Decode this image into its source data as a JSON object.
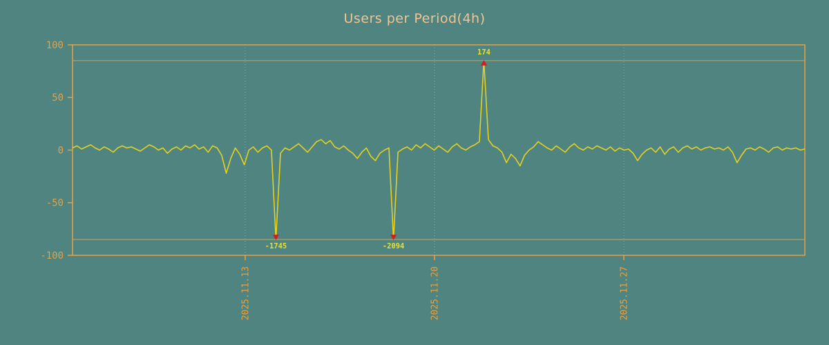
{
  "page": {
    "background": "#4f8480"
  },
  "chart_data": {
    "type": "line",
    "title": "Users per Period(4h)",
    "title_color": "#f2c48f",
    "axis_color": "#e8a040",
    "line_color": "#e6d21e",
    "marker_color": "#cc1f1f",
    "annotation_color": "#ecdf2c",
    "ylim": [
      -100,
      100
    ],
    "y_ticks": [
      100,
      50,
      0,
      -50,
      -100
    ],
    "clip_lines": [
      85,
      -85
    ],
    "grid": "dotted-vertical",
    "legend": "none",
    "x_ticks": [
      {
        "label": "2025.11.13",
        "pos": 0.2358
      },
      {
        "label": "2025.11.20",
        "pos": 0.4943
      },
      {
        "label": "2025.11.27",
        "pos": 0.7528
      }
    ],
    "annotations": [
      {
        "index": 45,
        "value": -1745,
        "label": "-1745",
        "direction": "down"
      },
      {
        "index": 71,
        "value": -2094,
        "label": "-2094",
        "direction": "down"
      },
      {
        "index": 91,
        "value": 174,
        "label": "174",
        "direction": "up"
      }
    ],
    "values": [
      2,
      4,
      1,
      3,
      5,
      2,
      0,
      3,
      1,
      -2,
      2,
      4,
      2,
      3,
      1,
      -1,
      2,
      5,
      3,
      0,
      2,
      -3,
      1,
      3,
      0,
      4,
      2,
      5,
      1,
      3,
      -2,
      4,
      2,
      -5,
      -22,
      -8,
      2,
      -4,
      -14,
      0,
      3,
      -2,
      2,
      4,
      0,
      -1745,
      -3,
      2,
      0,
      3,
      6,
      2,
      -2,
      3,
      8,
      10,
      6,
      9,
      3,
      1,
      4,
      0,
      -3,
      -8,
      -2,
      2,
      -6,
      -10,
      -3,
      0,
      2,
      -2094,
      -2,
      1,
      3,
      0,
      5,
      2,
      6,
      3,
      0,
      4,
      1,
      -2,
      3,
      6,
      2,
      0,
      3,
      5,
      8,
      174,
      10,
      4,
      2,
      -2,
      -12,
      -4,
      -8,
      -15,
      -5,
      0,
      3,
      8,
      5,
      2,
      0,
      4,
      1,
      -2,
      3,
      6,
      2,
      0,
      3,
      1,
      4,
      2,
      0,
      3,
      -1,
      2,
      0,
      1,
      -3,
      -10,
      -4,
      0,
      2,
      -2,
      3,
      -4,
      1,
      3,
      -2,
      2,
      4,
      1,
      3,
      0,
      2,
      3,
      1,
      2,
      0,
      3,
      -2,
      -12,
      -5,
      1,
      2,
      0,
      3,
      1,
      -2,
      2,
      3,
      0,
      2,
      1,
      2,
      0,
      1
    ]
  }
}
